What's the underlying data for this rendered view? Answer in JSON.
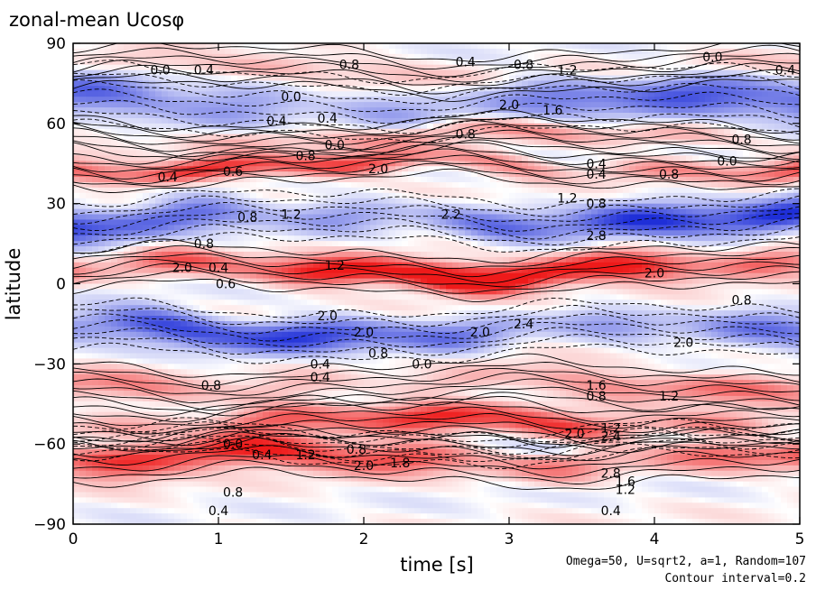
{
  "chart_data": {
    "type": "heatmap",
    "title": "zonal-mean Ucosφ",
    "xlabel": "time [s]",
    "ylabel": "latitude",
    "xlim": [
      0,
      5
    ],
    "ylim": [
      -90,
      90
    ],
    "x_ticks": [
      0,
      1,
      2,
      3,
      4,
      5
    ],
    "x_tick_labels": [
      "0",
      "1",
      "2",
      "3",
      "4",
      "5"
    ],
    "y_ticks": [
      90,
      60,
      30,
      0,
      -30,
      -60,
      -90
    ],
    "y_tick_labels": [
      "90",
      "60",
      "30",
      "0",
      "−30",
      "−60",
      "−90"
    ],
    "colormap": {
      "negative": "#1f2fd8",
      "zero": "#ffffff",
      "positive": "#ee1a1a"
    },
    "grid": false,
    "footnote_params": "Omega=50, U=sqrt2, a=1, Random=107",
    "footnote_interval": "Contour interval=0.2",
    "bands": [
      {
        "lat": 80,
        "width": 5,
        "amp": 0.6,
        "sign": 1
      },
      {
        "lat": 68,
        "width": 8,
        "amp": 1.6,
        "sign": -1
      },
      {
        "lat": 55,
        "width": 4,
        "amp": 0.8,
        "sign": 1
      },
      {
        "lat": 44,
        "width": 4,
        "amp": 2.0,
        "sign": 1
      },
      {
        "lat": 24,
        "width": 6,
        "amp": 2.2,
        "sign": -1
      },
      {
        "lat": 5,
        "width": 5,
        "amp": 3.2,
        "sign": 1
      },
      {
        "lat": -18,
        "width": 6,
        "amp": 2.0,
        "sign": -1
      },
      {
        "lat": -38,
        "width": 5,
        "amp": 1.2,
        "sign": 1
      },
      {
        "lat": -52,
        "width": 5,
        "amp": 2.0,
        "sign": 1
      },
      {
        "lat": -65,
        "width": 6,
        "amp": 2.4,
        "sign": 1
      },
      {
        "lat": -60,
        "width": 4,
        "amp": 0.6,
        "sign": -1
      }
    ],
    "contour_labels": [
      {
        "t": 0.6,
        "lat": 80,
        "text": "0.0"
      },
      {
        "t": 0.9,
        "lat": 80,
        "text": "0.4"
      },
      {
        "t": 1.9,
        "lat": 82,
        "text": "0.8"
      },
      {
        "t": 2.7,
        "lat": 83,
        "text": "0.4"
      },
      {
        "t": 3.1,
        "lat": 82,
        "text": "0.8"
      },
      {
        "t": 3.4,
        "lat": 80,
        "text": "1.2"
      },
      {
        "t": 4.4,
        "lat": 85,
        "text": "0.0"
      },
      {
        "t": 4.9,
        "lat": 80,
        "text": "0.4"
      },
      {
        "t": 1.5,
        "lat": 70,
        "text": "0.0"
      },
      {
        "t": 3.0,
        "lat": 67,
        "text": "2.0"
      },
      {
        "t": 3.3,
        "lat": 65,
        "text": "1.6"
      },
      {
        "t": 1.4,
        "lat": 61,
        "text": "0.4"
      },
      {
        "t": 1.75,
        "lat": 62,
        "text": "0.4"
      },
      {
        "t": 2.7,
        "lat": 56,
        "text": "0.8"
      },
      {
        "t": 4.6,
        "lat": 54,
        "text": "0.8"
      },
      {
        "t": 1.6,
        "lat": 48,
        "text": "0.8"
      },
      {
        "t": 1.8,
        "lat": 52,
        "text": "0.0"
      },
      {
        "t": 0.65,
        "lat": 40,
        "text": "0.4"
      },
      {
        "t": 1.1,
        "lat": 42,
        "text": "0.6"
      },
      {
        "t": 2.1,
        "lat": 43,
        "text": "2.0"
      },
      {
        "t": 3.6,
        "lat": 45,
        "text": "0.4"
      },
      {
        "t": 3.6,
        "lat": 41,
        "text": "0.4"
      },
      {
        "t": 4.1,
        "lat": 41,
        "text": "0.8"
      },
      {
        "t": 4.5,
        "lat": 46,
        "text": "0.0"
      },
      {
        "t": 3.4,
        "lat": 32,
        "text": "1.2"
      },
      {
        "t": 3.6,
        "lat": 30,
        "text": "0.8"
      },
      {
        "t": 1.2,
        "lat": 25,
        "text": "0.8"
      },
      {
        "t": 1.5,
        "lat": 26,
        "text": "1.2"
      },
      {
        "t": 2.6,
        "lat": 26,
        "text": "2.2"
      },
      {
        "t": 3.6,
        "lat": 18,
        "text": "2.8"
      },
      {
        "t": 0.9,
        "lat": 15,
        "text": "0.8"
      },
      {
        "t": 0.75,
        "lat": 6,
        "text": "2.0"
      },
      {
        "t": 1.0,
        "lat": 6,
        "text": "0.4"
      },
      {
        "t": 1.8,
        "lat": 7,
        "text": "1.2"
      },
      {
        "t": 4.0,
        "lat": 4,
        "text": "2.0"
      },
      {
        "t": 1.05,
        "lat": 0,
        "text": "0.6"
      },
      {
        "t": 4.6,
        "lat": -6,
        "text": "0.8"
      },
      {
        "t": 1.75,
        "lat": -12,
        "text": "2.0"
      },
      {
        "t": 2.0,
        "lat": -18,
        "text": "2.0"
      },
      {
        "t": 2.8,
        "lat": -18,
        "text": "2.0"
      },
      {
        "t": 3.1,
        "lat": -15,
        "text": "2.4"
      },
      {
        "t": 4.2,
        "lat": -22,
        "text": "2.0"
      },
      {
        "t": 2.1,
        "lat": -26,
        "text": "0.8"
      },
      {
        "t": 2.4,
        "lat": -30,
        "text": "0.0"
      },
      {
        "t": 1.7,
        "lat": -30,
        "text": "0.4"
      },
      {
        "t": 1.7,
        "lat": -35,
        "text": "0.4"
      },
      {
        "t": 0.95,
        "lat": -38,
        "text": "0.8"
      },
      {
        "t": 3.6,
        "lat": -38,
        "text": "1.6"
      },
      {
        "t": 3.6,
        "lat": -42,
        "text": "0.8"
      },
      {
        "t": 4.1,
        "lat": -42,
        "text": "1.2"
      },
      {
        "t": 3.45,
        "lat": -56,
        "text": "2.0"
      },
      {
        "t": 3.7,
        "lat": -54,
        "text": "1.2"
      },
      {
        "t": 3.7,
        "lat": -57,
        "text": "2.4"
      },
      {
        "t": 1.1,
        "lat": -60,
        "text": "0.0"
      },
      {
        "t": 1.3,
        "lat": -64,
        "text": "0.4"
      },
      {
        "t": 1.6,
        "lat": -64,
        "text": "1.2"
      },
      {
        "t": 1.95,
        "lat": -62,
        "text": "0.8"
      },
      {
        "t": 2.0,
        "lat": -68,
        "text": "2.0"
      },
      {
        "t": 2.25,
        "lat": -67,
        "text": "1.8"
      },
      {
        "t": 3.7,
        "lat": -71,
        "text": "2.8"
      },
      {
        "t": 3.8,
        "lat": -74,
        "text": "1.6"
      },
      {
        "t": 3.8,
        "lat": -77,
        "text": "1.2"
      },
      {
        "t": 1.1,
        "lat": -78,
        "text": "0.8"
      },
      {
        "t": 1.0,
        "lat": -85,
        "text": "0.4"
      },
      {
        "t": 3.7,
        "lat": -85,
        "text": "0.4"
      }
    ]
  }
}
